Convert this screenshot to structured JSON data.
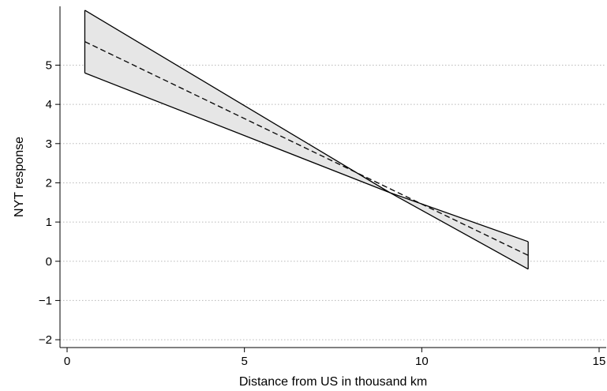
{
  "chart_data": {
    "type": "line",
    "title": "",
    "xlabel": "Distance from US in thousand km",
    "ylabel": "NYT response",
    "xlim": [
      -0.2,
      15.2
    ],
    "ylim": [
      -2.2,
      6.5
    ],
    "xticks": [
      0,
      5,
      10,
      15
    ],
    "yticks": [
      -2,
      -1,
      0,
      1,
      2,
      3,
      4,
      5
    ],
    "ytick_labels": [
      "−2",
      "−1",
      "0",
      "1",
      "2",
      "3",
      "4",
      "5"
    ],
    "grid": "horizontal dotted",
    "series": [
      {
        "role": "estimate",
        "style": "dashed",
        "x": [
          0.5,
          13
        ],
        "y": [
          5.6,
          0.15
        ]
      },
      {
        "role": "confidence-band",
        "style": "filled",
        "x": [
          0.5,
          9.1,
          13
        ],
        "upper": [
          6.4,
          1.75,
          0.5
        ],
        "lower": [
          4.8,
          1.75,
          -0.2
        ]
      }
    ],
    "colors": {
      "band_fill": "#e6e6e6",
      "lines": "#000000",
      "grid": "#b8b8b8"
    }
  }
}
